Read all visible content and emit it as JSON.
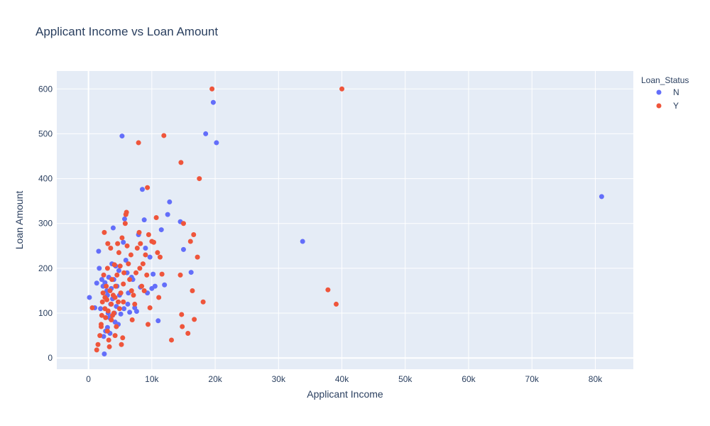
{
  "chart_data": {
    "type": "scatter",
    "title": "Applicant Income vs Loan Amount",
    "xlabel": "Applicant Income",
    "ylabel": "Loan Amount",
    "xlim": [
      -5000,
      86000
    ],
    "ylim": [
      -25,
      640
    ],
    "x_ticks": [
      0,
      10000,
      20000,
      30000,
      40000,
      50000,
      60000,
      70000,
      80000
    ],
    "x_tick_labels": [
      "0",
      "10k",
      "20k",
      "30k",
      "40k",
      "50k",
      "60k",
      "70k",
      "80k"
    ],
    "y_ticks": [
      0,
      100,
      200,
      300,
      400,
      500,
      600
    ],
    "y_tick_labels": [
      "0",
      "100",
      "200",
      "300",
      "400",
      "500",
      "600"
    ],
    "grid": true,
    "legend_title": "Loan_Status",
    "legend_position": "top-right",
    "series": [
      {
        "name": "N",
        "color": "#636efa",
        "points": [
          [
            150,
            135
          ],
          [
            1000,
            112
          ],
          [
            1300,
            167
          ],
          [
            1600,
            238
          ],
          [
            1700,
            200
          ],
          [
            1900,
            110
          ],
          [
            2100,
            175
          ],
          [
            2300,
            160
          ],
          [
            2500,
            9
          ],
          [
            2600,
            168
          ],
          [
            2700,
            60
          ],
          [
            2900,
            150
          ],
          [
            3000,
            140
          ],
          [
            3100,
            100
          ],
          [
            3200,
            180
          ],
          [
            3300,
            90
          ],
          [
            3400,
            55
          ],
          [
            3500,
            120
          ],
          [
            3600,
            155
          ],
          [
            3700,
            210
          ],
          [
            3800,
            132
          ],
          [
            3900,
            290
          ],
          [
            4000,
            175
          ],
          [
            4100,
            100
          ],
          [
            4200,
            80
          ],
          [
            4400,
            115
          ],
          [
            4500,
            160
          ],
          [
            4700,
            75
          ],
          [
            4900,
            140
          ],
          [
            5100,
            98
          ],
          [
            5300,
            495
          ],
          [
            5500,
            258
          ],
          [
            5700,
            310
          ],
          [
            5900,
            218
          ],
          [
            6100,
            190
          ],
          [
            6300,
            145
          ],
          [
            6500,
            102
          ],
          [
            6800,
            180
          ],
          [
            7000,
            175
          ],
          [
            7300,
            112
          ],
          [
            7600,
            104
          ],
          [
            7900,
            275
          ],
          [
            8200,
            158
          ],
          [
            8500,
            376
          ],
          [
            8800,
            308
          ],
          [
            9000,
            245
          ],
          [
            9300,
            145
          ],
          [
            9700,
            225
          ],
          [
            10000,
            155
          ],
          [
            10200,
            187
          ],
          [
            10500,
            160
          ],
          [
            11000,
            83
          ],
          [
            11500,
            286
          ],
          [
            12000,
            163
          ],
          [
            12500,
            320
          ],
          [
            12800,
            348
          ],
          [
            14500,
            304
          ],
          [
            15000,
            242
          ],
          [
            16200,
            191
          ],
          [
            18500,
            500
          ],
          [
            19700,
            570
          ],
          [
            20200,
            480
          ],
          [
            33800,
            260
          ],
          [
            81000,
            360
          ],
          [
            4800,
            195
          ],
          [
            6200,
            120
          ],
          [
            3000,
            68
          ],
          [
            2400,
            48
          ],
          [
            5600,
            110
          ],
          [
            4300,
            205
          ]
        ]
      },
      {
        "name": "Y",
        "color": "#ef553b",
        "points": [
          [
            600,
            112
          ],
          [
            1300,
            18
          ],
          [
            1500,
            30
          ],
          [
            1800,
            50
          ],
          [
            2000,
            75
          ],
          [
            2100,
            95
          ],
          [
            2200,
            125
          ],
          [
            2300,
            145
          ],
          [
            2400,
            185
          ],
          [
            2500,
            280
          ],
          [
            2600,
            110
          ],
          [
            2700,
            90
          ],
          [
            2800,
            160
          ],
          [
            2900,
            130
          ],
          [
            3000,
            200
          ],
          [
            3050,
            255
          ],
          [
            3100,
            105
          ],
          [
            3200,
            40
          ],
          [
            3300,
            25
          ],
          [
            3400,
            150
          ],
          [
            3500,
            245
          ],
          [
            3600,
            120
          ],
          [
            3700,
            175
          ],
          [
            3800,
            95
          ],
          [
            3900,
            140
          ],
          [
            4000,
            100
          ],
          [
            4100,
            208
          ],
          [
            4200,
            135
          ],
          [
            4300,
            160
          ],
          [
            4400,
            70
          ],
          [
            4500,
            185
          ],
          [
            4600,
            255
          ],
          [
            4700,
            125
          ],
          [
            4800,
            235
          ],
          [
            4900,
            110
          ],
          [
            5000,
            205
          ],
          [
            5100,
            145
          ],
          [
            5200,
            30
          ],
          [
            5300,
            268
          ],
          [
            5400,
            45
          ],
          [
            5500,
            165
          ],
          [
            5600,
            190
          ],
          [
            5800,
            300
          ],
          [
            5900,
            320
          ],
          [
            6000,
            325
          ],
          [
            6100,
            250
          ],
          [
            6300,
            210
          ],
          [
            6500,
            175
          ],
          [
            6700,
            230
          ],
          [
            6900,
            85
          ],
          [
            7100,
            140
          ],
          [
            7300,
            120
          ],
          [
            7500,
            190
          ],
          [
            7700,
            245
          ],
          [
            7900,
            480
          ],
          [
            8000,
            280
          ],
          [
            8200,
            255
          ],
          [
            8400,
            160
          ],
          [
            8600,
            210
          ],
          [
            8800,
            150
          ],
          [
            9000,
            230
          ],
          [
            9200,
            185
          ],
          [
            9300,
            380
          ],
          [
            9500,
            275
          ],
          [
            9700,
            112
          ],
          [
            10000,
            260
          ],
          [
            10300,
            258
          ],
          [
            10700,
            313
          ],
          [
            10900,
            235
          ],
          [
            11100,
            135
          ],
          [
            11300,
            225
          ],
          [
            11600,
            187
          ],
          [
            11900,
            496
          ],
          [
            13100,
            40
          ],
          [
            14500,
            185
          ],
          [
            14600,
            436
          ],
          [
            14700,
            97
          ],
          [
            14800,
            70
          ],
          [
            15000,
            300
          ],
          [
            15700,
            55
          ],
          [
            16100,
            260
          ],
          [
            16400,
            150
          ],
          [
            16600,
            275
          ],
          [
            16700,
            86
          ],
          [
            17200,
            225
          ],
          [
            17500,
            400
          ],
          [
            18100,
            125
          ],
          [
            19500,
            600
          ],
          [
            37800,
            152
          ],
          [
            39100,
            120
          ],
          [
            40000,
            600
          ],
          [
            9400,
            75
          ],
          [
            8100,
            200
          ],
          [
            6800,
            150
          ],
          [
            5500,
            125
          ],
          [
            3000,
            60
          ],
          [
            2600,
            135
          ],
          [
            3600,
            85
          ],
          [
            4200,
            50
          ],
          [
            2000,
            70
          ]
        ]
      }
    ]
  }
}
